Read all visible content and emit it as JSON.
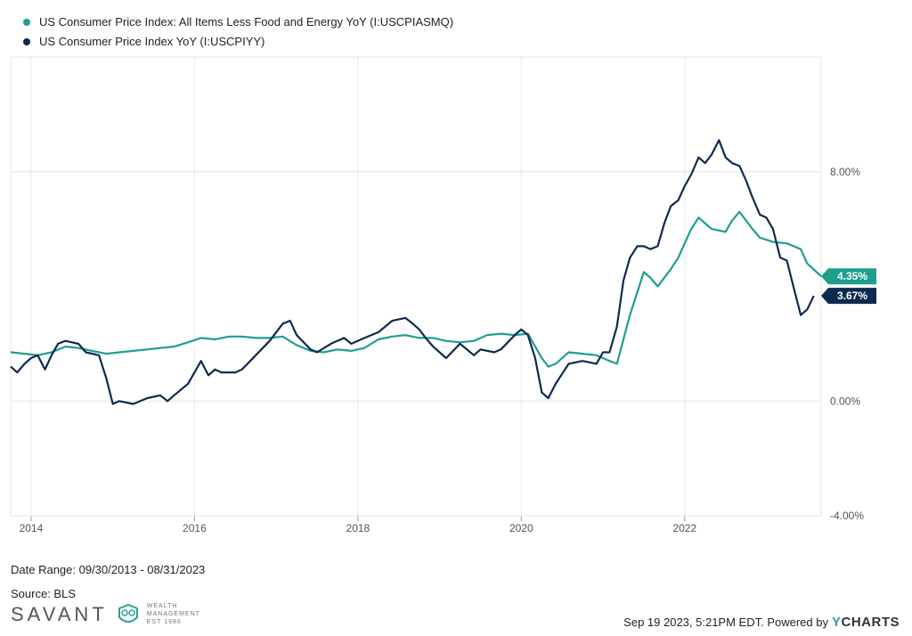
{
  "legend": [
    {
      "label": "US Consumer Price Index: All Items Less Food and Energy YoY (I:USCPIASMQ)",
      "color": "#1f9e8f"
    },
    {
      "label": "US Consumer Price Index YoY (I:USCPIYY)",
      "color": "#0e2a4f"
    }
  ],
  "footer": {
    "date_range": "Date Range: 09/30/2013 - 08/31/2023",
    "source": "Source: BLS",
    "timestamp": "Sep 19 2023, 5:21PM EDT.  Powered by",
    "brand_prefix": "Y",
    "brand_suffix": "CHARTS"
  },
  "logo": {
    "name": "SAVANT",
    "sub1": "WEALTH",
    "sub2": "MANAGEMENT",
    "sub3": "EST 1986"
  },
  "chart_data": {
    "type": "line",
    "x_ticks": [
      "2014",
      "2016",
      "2018",
      "2020",
      "2022"
    ],
    "x_tick_values": [
      2014,
      2016,
      2018,
      2020,
      2022
    ],
    "y_ticks": [
      8,
      0,
      -4
    ],
    "y_tick_labels": [
      "8.00%",
      "0.00%",
      "-4.00%"
    ],
    "xlim": [
      2013.75,
      2023.67
    ],
    "ylim": [
      -4,
      12
    ],
    "grid": true,
    "series": [
      {
        "name": "US Consumer Price Index: All Items Less Food and Energy YoY (I:USCPIASMQ)",
        "color": "#1f9e8f",
        "end_label": "4.35%",
        "points": [
          [
            2013.75,
            1.7
          ],
          [
            2013.92,
            1.65
          ],
          [
            2014.08,
            1.6
          ],
          [
            2014.25,
            1.7
          ],
          [
            2014.42,
            1.9
          ],
          [
            2014.58,
            1.85
          ],
          [
            2014.75,
            1.75
          ],
          [
            2014.92,
            1.65
          ],
          [
            2015.08,
            1.7
          ],
          [
            2015.25,
            1.75
          ],
          [
            2015.42,
            1.8
          ],
          [
            2015.58,
            1.85
          ],
          [
            2015.75,
            1.9
          ],
          [
            2015.92,
            2.05
          ],
          [
            2016.08,
            2.2
          ],
          [
            2016.25,
            2.15
          ],
          [
            2016.42,
            2.25
          ],
          [
            2016.58,
            2.25
          ],
          [
            2016.75,
            2.2
          ],
          [
            2016.92,
            2.2
          ],
          [
            2017.08,
            2.25
          ],
          [
            2017.25,
            1.95
          ],
          [
            2017.42,
            1.75
          ],
          [
            2017.58,
            1.7
          ],
          [
            2017.75,
            1.8
          ],
          [
            2017.92,
            1.75
          ],
          [
            2018.08,
            1.85
          ],
          [
            2018.25,
            2.15
          ],
          [
            2018.42,
            2.25
          ],
          [
            2018.58,
            2.3
          ],
          [
            2018.75,
            2.2
          ],
          [
            2018.92,
            2.2
          ],
          [
            2019.08,
            2.1
          ],
          [
            2019.25,
            2.05
          ],
          [
            2019.42,
            2.1
          ],
          [
            2019.58,
            2.3
          ],
          [
            2019.75,
            2.35
          ],
          [
            2019.92,
            2.3
          ],
          [
            2020.08,
            2.35
          ],
          [
            2020.25,
            1.5
          ],
          [
            2020.33,
            1.2
          ],
          [
            2020.42,
            1.3
          ],
          [
            2020.58,
            1.7
          ],
          [
            2020.75,
            1.65
          ],
          [
            2020.92,
            1.6
          ],
          [
            2021.08,
            1.4
          ],
          [
            2021.17,
            1.3
          ],
          [
            2021.33,
            3.0
          ],
          [
            2021.5,
            4.5
          ],
          [
            2021.58,
            4.3
          ],
          [
            2021.67,
            4.0
          ],
          [
            2021.83,
            4.6
          ],
          [
            2021.92,
            5.0
          ],
          [
            2022.08,
            6.0
          ],
          [
            2022.17,
            6.4
          ],
          [
            2022.33,
            6.0
          ],
          [
            2022.5,
            5.9
          ],
          [
            2022.58,
            6.3
          ],
          [
            2022.67,
            6.6
          ],
          [
            2022.83,
            6.0
          ],
          [
            2022.92,
            5.7
          ],
          [
            2023.08,
            5.55
          ],
          [
            2023.25,
            5.5
          ],
          [
            2023.42,
            5.3
          ],
          [
            2023.5,
            4.8
          ],
          [
            2023.67,
            4.35
          ]
        ]
      },
      {
        "name": "US Consumer Price Index YoY (I:USCPIYY)",
        "color": "#0e2a4f",
        "end_label": "3.67%",
        "points": [
          [
            2013.75,
            1.2
          ],
          [
            2013.83,
            1.0
          ],
          [
            2013.92,
            1.3
          ],
          [
            2014.0,
            1.5
          ],
          [
            2014.08,
            1.6
          ],
          [
            2014.17,
            1.1
          ],
          [
            2014.25,
            1.6
          ],
          [
            2014.33,
            2.0
          ],
          [
            2014.42,
            2.1
          ],
          [
            2014.58,
            2.0
          ],
          [
            2014.67,
            1.7
          ],
          [
            2014.83,
            1.6
          ],
          [
            2014.92,
            0.8
          ],
          [
            2015.0,
            -0.1
          ],
          [
            2015.08,
            0.0
          ],
          [
            2015.25,
            -0.1
          ],
          [
            2015.42,
            0.1
          ],
          [
            2015.58,
            0.2
          ],
          [
            2015.67,
            0.0
          ],
          [
            2015.75,
            0.2
          ],
          [
            2015.92,
            0.6
          ],
          [
            2016.0,
            1.0
          ],
          [
            2016.08,
            1.4
          ],
          [
            2016.17,
            0.9
          ],
          [
            2016.25,
            1.1
          ],
          [
            2016.33,
            1.0
          ],
          [
            2016.5,
            1.0
          ],
          [
            2016.58,
            1.1
          ],
          [
            2016.75,
            1.6
          ],
          [
            2016.92,
            2.1
          ],
          [
            2017.08,
            2.7
          ],
          [
            2017.17,
            2.8
          ],
          [
            2017.25,
            2.3
          ],
          [
            2017.42,
            1.8
          ],
          [
            2017.5,
            1.7
          ],
          [
            2017.67,
            2.0
          ],
          [
            2017.83,
            2.2
          ],
          [
            2017.92,
            2.0
          ],
          [
            2018.08,
            2.2
          ],
          [
            2018.25,
            2.4
          ],
          [
            2018.42,
            2.8
          ],
          [
            2018.58,
            2.9
          ],
          [
            2018.67,
            2.7
          ],
          [
            2018.75,
            2.5
          ],
          [
            2018.83,
            2.2
          ],
          [
            2018.92,
            1.9
          ],
          [
            2019.08,
            1.5
          ],
          [
            2019.25,
            2.0
          ],
          [
            2019.42,
            1.6
          ],
          [
            2019.5,
            1.8
          ],
          [
            2019.67,
            1.7
          ],
          [
            2019.75,
            1.8
          ],
          [
            2019.92,
            2.3
          ],
          [
            2020.0,
            2.5
          ],
          [
            2020.08,
            2.3
          ],
          [
            2020.17,
            1.5
          ],
          [
            2020.25,
            0.3
          ],
          [
            2020.33,
            0.1
          ],
          [
            2020.42,
            0.6
          ],
          [
            2020.58,
            1.3
          ],
          [
            2020.75,
            1.4
          ],
          [
            2020.92,
            1.3
          ],
          [
            2021.0,
            1.7
          ],
          [
            2021.08,
            1.7
          ],
          [
            2021.17,
            2.6
          ],
          [
            2021.25,
            4.2
          ],
          [
            2021.33,
            5.0
          ],
          [
            2021.42,
            5.4
          ],
          [
            2021.5,
            5.4
          ],
          [
            2021.58,
            5.3
          ],
          [
            2021.67,
            5.4
          ],
          [
            2021.75,
            6.2
          ],
          [
            2021.83,
            6.8
          ],
          [
            2021.92,
            7.0
          ],
          [
            2022.0,
            7.5
          ],
          [
            2022.08,
            7.9
          ],
          [
            2022.17,
            8.5
          ],
          [
            2022.25,
            8.3
          ],
          [
            2022.33,
            8.6
          ],
          [
            2022.42,
            9.1
          ],
          [
            2022.5,
            8.5
          ],
          [
            2022.58,
            8.3
          ],
          [
            2022.67,
            8.2
          ],
          [
            2022.75,
            7.7
          ],
          [
            2022.83,
            7.1
          ],
          [
            2022.92,
            6.5
          ],
          [
            2023.0,
            6.4
          ],
          [
            2023.08,
            6.0
          ],
          [
            2023.17,
            5.0
          ],
          [
            2023.25,
            4.9
          ],
          [
            2023.33,
            4.0
          ],
          [
            2023.42,
            3.0
          ],
          [
            2023.5,
            3.2
          ],
          [
            2023.58,
            3.67
          ]
        ]
      }
    ]
  }
}
